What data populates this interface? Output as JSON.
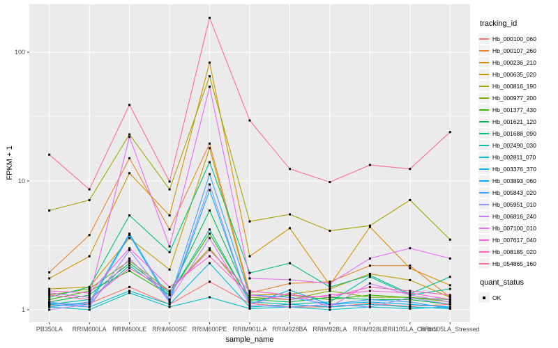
{
  "axes": {
    "x_label": "sample_name",
    "y_label": "FPKM + 1"
  },
  "legend": {
    "tracking_title": "tracking_id",
    "quant_title": "quant_status",
    "quant_items": [
      {
        "label": "OK",
        "marker": "black-square"
      }
    ]
  },
  "colors": {
    "panel_bg": "#EBEBEB",
    "grid_major": "#FFFFFF",
    "grid_minor": "#F7F7F7",
    "tick": "#333333",
    "tick_label": "#4D4D4D",
    "point": "#000000",
    "legend_key_bg": "#F2F2F2"
  },
  "chart_data": {
    "type": "line",
    "title": "",
    "xlabel": "sample_name",
    "ylabel": "FPKM + 1",
    "y_scale": "log10",
    "ylim": [
      1,
      236
    ],
    "y_ticks": [
      1,
      10,
      100
    ],
    "y_minor_ticks": [
      3.162,
      31.62
    ],
    "grid": true,
    "legend_position": "right",
    "point_marker": "small black square (quant_status OK)",
    "categories": [
      "PB350LA",
      "RRIM600LA",
      "RRIM600LE",
      "RRIM600SE",
      "RRIM600PE",
      "RRIM901LA",
      "RRIM928BA",
      "RRIM928LA",
      "RRIM928LE",
      "RRII105LA_Control",
      "RRII105LA_Stressed"
    ],
    "series": [
      {
        "name": "Hb_000100_060",
        "color": "#F8766D",
        "values": [
          1.08,
          1.12,
          1.5,
          1.1,
          1.65,
          1.12,
          1.05,
          1.05,
          1.12,
          1.06,
          1.1
        ]
      },
      {
        "name": "Hb_000107_260",
        "color": "#EA8331",
        "values": [
          1.95,
          3.8,
          15,
          4.2,
          19.5,
          1.35,
          1.6,
          1.65,
          2.2,
          2.2,
          1.25
        ]
      },
      {
        "name": "Hb_000236_210",
        "color": "#D89000",
        "values": [
          1.75,
          2.6,
          11.5,
          5.4,
          83,
          2.6,
          4.3,
          1.55,
          4.4,
          2.1,
          1.55
        ]
      },
      {
        "name": "Hb_000635_020",
        "color": "#C09B00",
        "values": [
          1.45,
          1.5,
          3.6,
          2.05,
          18,
          1.3,
          1.32,
          1.45,
          1.9,
          1.7,
          1.25
        ]
      },
      {
        "name": "Hb_000816_190",
        "color": "#A3A500",
        "values": [
          5.9,
          7.1,
          23,
          8.6,
          65,
          4.85,
          5.5,
          4.1,
          4.5,
          7.1,
          3.5
        ]
      },
      {
        "name": "Hb_000977_200",
        "color": "#7CAE00",
        "values": [
          1.3,
          1.45,
          2.4,
          1.4,
          3.0,
          1.25,
          1.2,
          1.4,
          1.25,
          1.25,
          1.15
        ]
      },
      {
        "name": "Hb_001377_430",
        "color": "#39B600",
        "values": [
          1.2,
          1.4,
          2.0,
          1.3,
          3.9,
          1.18,
          1.3,
          1.2,
          1.3,
          1.24,
          1.2
        ]
      },
      {
        "name": "Hb_001621_120",
        "color": "#00BB4E",
        "values": [
          1.15,
          1.3,
          2.3,
          1.35,
          5.9,
          1.2,
          1.15,
          1.25,
          1.2,
          1.2,
          1.1
        ]
      },
      {
        "name": "Hb_001688_090",
        "color": "#00BF7D",
        "values": [
          1.25,
          1.5,
          5.4,
          2.8,
          14,
          1.93,
          2.3,
          1.5,
          1.85,
          1.33,
          1.8
        ]
      },
      {
        "name": "Hb_002490_030",
        "color": "#00C1A3",
        "values": [
          1.1,
          1.2,
          2.2,
          1.3,
          4.2,
          1.15,
          1.1,
          1.15,
          1.8,
          1.3,
          1.45
        ]
      },
      {
        "name": "Hb_002811_070",
        "color": "#00BFC4",
        "values": [
          1.05,
          1.0,
          1.35,
          1.05,
          1.25,
          1.02,
          1.05,
          1.0,
          1.05,
          1.02,
          1.05
        ]
      },
      {
        "name": "Hb_003376_370",
        "color": "#00BAE0",
        "values": [
          1.1,
          1.05,
          1.4,
          1.1,
          2.3,
          1.05,
          1.1,
          1.05,
          1.1,
          1.05,
          1.02
        ]
      },
      {
        "name": "Hb_003893_060",
        "color": "#00B0F6",
        "values": [
          1.12,
          1.1,
          3.8,
          1.15,
          8.5,
          1.1,
          1.42,
          1.1,
          1.15,
          1.1,
          1.05
        ]
      },
      {
        "name": "Hb_005843_020",
        "color": "#35A2FF",
        "values": [
          1.05,
          1.15,
          3.9,
          1.2,
          11.3,
          1.3,
          1.25,
          1.1,
          1.2,
          1.15,
          1.02
        ]
      },
      {
        "name": "Hb_005951_010",
        "color": "#9590FF",
        "values": [
          1.15,
          1.05,
          2.9,
          1.15,
          9.4,
          1.08,
          1.05,
          1.1,
          1.05,
          1.24,
          1.1
        ]
      },
      {
        "name": "Hb_006816_240",
        "color": "#C77CFF",
        "values": [
          1.0,
          1.1,
          2.5,
          1.2,
          3.6,
          1.1,
          1.35,
          1.05,
          1.6,
          1.3,
          1.15
        ]
      },
      {
        "name": "Hb_007100_010",
        "color": "#E76BF3",
        "values": [
          1.35,
          1.25,
          22,
          3.1,
          54,
          1.75,
          1.71,
          1.6,
          2.5,
          3.0,
          2.5
        ]
      },
      {
        "name": "Hb_007617_040",
        "color": "#FA62DB",
        "values": [
          1.4,
          1.35,
          3.0,
          1.5,
          2.6,
          1.3,
          1.2,
          1.3,
          1.4,
          1.35,
          1.2
        ]
      },
      {
        "name": "Hb_008185_020",
        "color": "#FF62BC",
        "values": [
          1.3,
          1.2,
          2.1,
          1.4,
          2.9,
          1.4,
          1.3,
          1.25,
          1.5,
          1.4,
          1.3
        ]
      },
      {
        "name": "Hb_054865_160",
        "color": "#FF6A98",
        "values": [
          16,
          8.6,
          39,
          9.9,
          185,
          29.5,
          12.4,
          9.8,
          13.3,
          12.4,
          24
        ]
      }
    ]
  }
}
